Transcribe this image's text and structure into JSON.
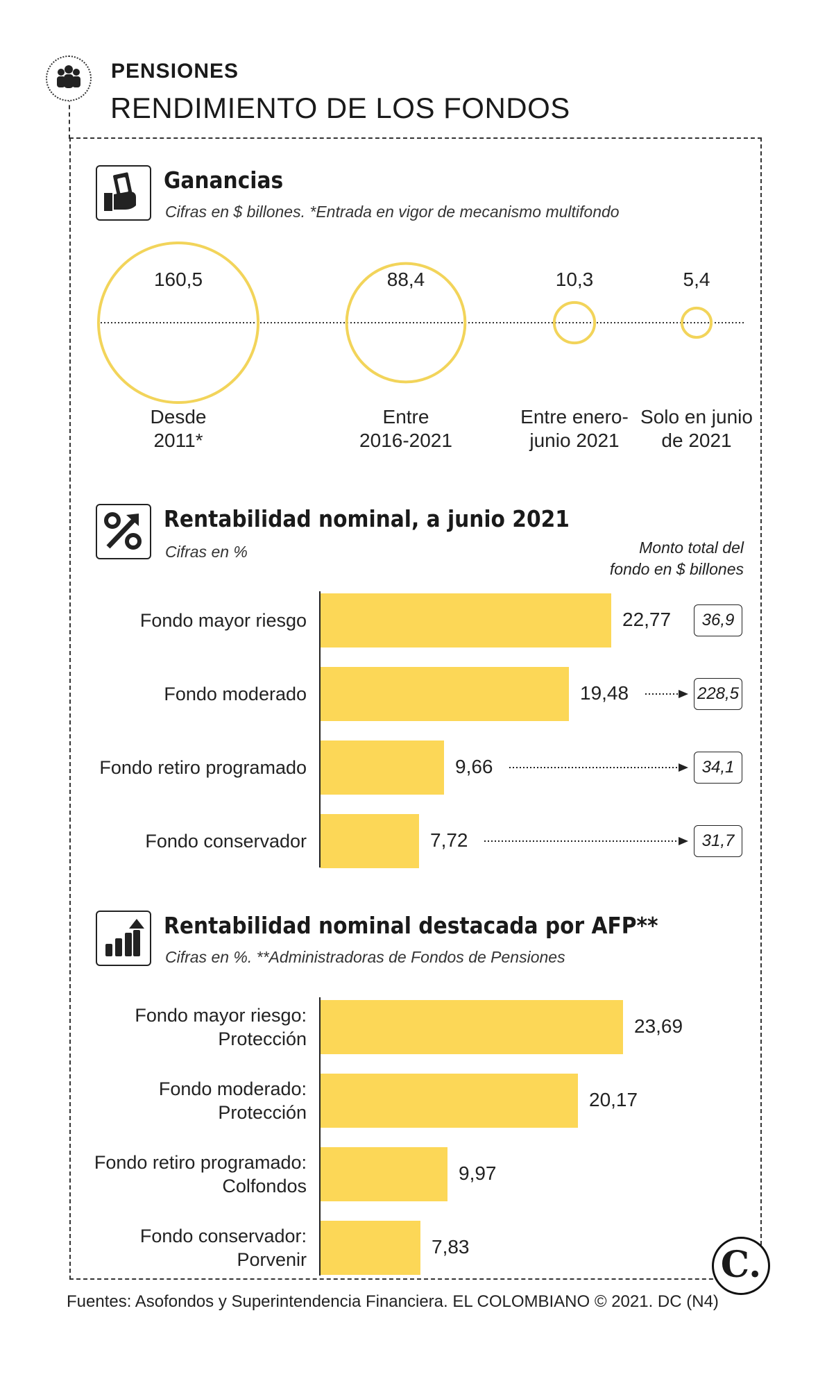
{
  "header": {
    "kicker": "PENSIONES",
    "title": "RENDIMIENTO DE LOS FONDOS"
  },
  "colors": {
    "accent": "#fcd757",
    "circle_stroke": "#f2d45a",
    "text": "#1a1a1a"
  },
  "icons": [
    "people-icon",
    "money-hand-icon",
    "percent-icon",
    "growth-chart-icon"
  ],
  "chart_data": [
    {
      "type": "bubble",
      "title": "Ganancias",
      "subtitle": "Cifras en $ billones.  *Entrada en vigor de mecanismo multifondo",
      "categories": [
        "Desde 2011*",
        "Entre 2016-2021",
        "Entre enero-junio 2021",
        "Solo en junio de 2021"
      ],
      "category_lines": [
        [
          "Desde",
          "2011*"
        ],
        [
          "Entre",
          "2016-2021"
        ],
        [
          "Entre enero-",
          "junio 2021"
        ],
        [
          "Solo en junio",
          "de 2021"
        ]
      ],
      "values": [
        160.5,
        88.4,
        10.3,
        5.4
      ],
      "value_labels": [
        "160,5",
        "88,4",
        "10,3",
        "5,4"
      ]
    },
    {
      "type": "bar",
      "orientation": "horizontal",
      "title": "Rentabilidad nominal, a junio 2021",
      "subtitle": "Cifras en %",
      "annotation_lines": [
        "Monto total del",
        "fondo en $ billones"
      ],
      "categories": [
        "Fondo mayor riesgo",
        "Fondo moderado",
        "Fondo retiro programado",
        "Fondo conservador"
      ],
      "values": [
        22.77,
        19.48,
        9.66,
        7.72
      ],
      "value_labels": [
        "22,77",
        "19,48",
        "9,66",
        "7,72"
      ],
      "fund_totals": [
        36.9,
        228.5,
        34.1,
        31.7
      ],
      "fund_total_labels": [
        "36,9",
        "228,5",
        "34,1",
        "31,7"
      ],
      "xlim": [
        0,
        25
      ]
    },
    {
      "type": "bar",
      "orientation": "horizontal",
      "title": "Rentabilidad nominal destacada por AFP**",
      "subtitle": "Cifras en %.  **Administradoras de Fondos de Pensiones",
      "categories": [
        "Fondo mayor riesgo: Protección",
        "Fondo moderado: Protección",
        "Fondo retiro programado: Colfondos",
        "Fondo conservador: Porvenir"
      ],
      "category_lines": [
        [
          "Fondo mayor riesgo:",
          "Protección"
        ],
        [
          "Fondo moderado:",
          "Protección"
        ],
        [
          "Fondo retiro programado:",
          "Colfondos"
        ],
        [
          "Fondo conservador:",
          "Porvenir"
        ]
      ],
      "values": [
        23.69,
        20.17,
        9.97,
        7.83
      ],
      "value_labels": [
        "23,69",
        "20,17",
        "9,97",
        "7,83"
      ],
      "xlim": [
        0,
        25
      ]
    }
  ],
  "footer": {
    "source": "Fuentes: Asofondos y Superintendencia Financiera. EL COLOMBIANO © 2021. DC (N4)"
  },
  "logo": {
    "letter": "C."
  }
}
